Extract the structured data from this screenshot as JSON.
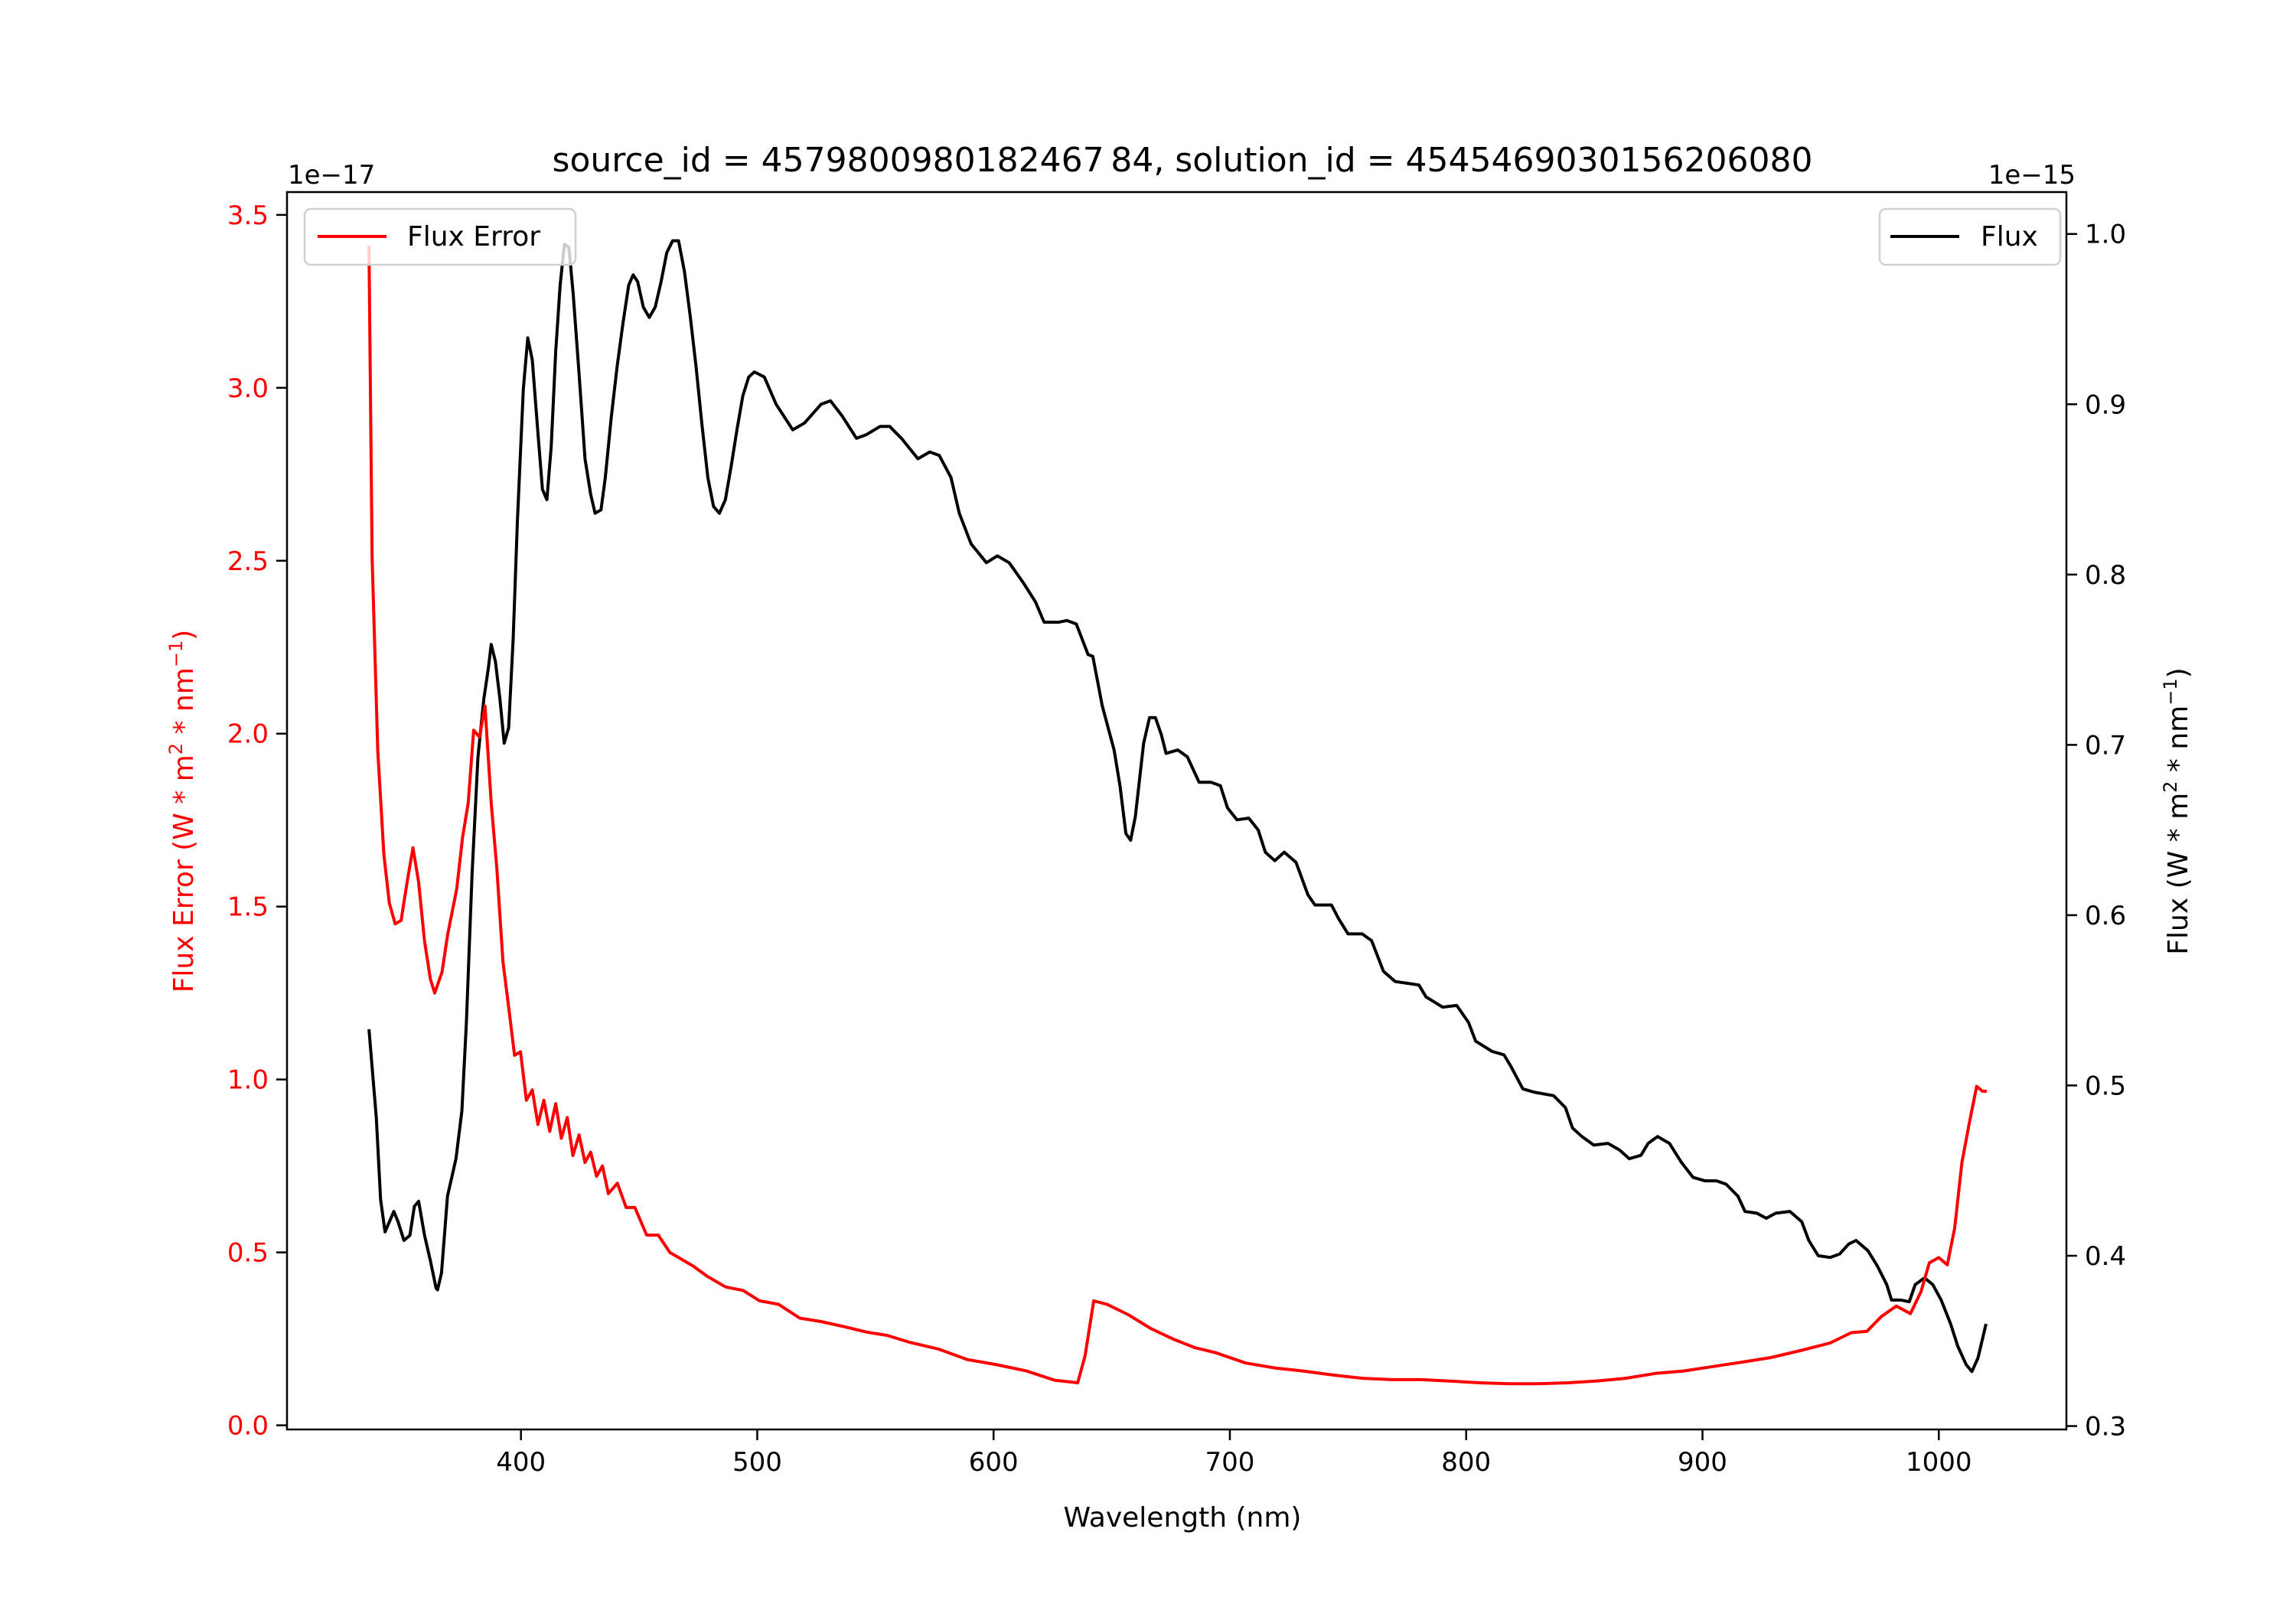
{
  "chart_data": {
    "type": "line",
    "title": "source_id = 4579800980182467 84, solution_id = 4545469030156206080",
    "xlabel": "Wavelength (nm)",
    "ylabel_left": "Flux Error (W * m^2 * nm^-1)",
    "ylabel_right": "Flux (W * m^2 * nm^-1)",
    "left_offset_text": "1e−17",
    "right_offset_text": "1e−15",
    "xlim": [
      301,
      1054
    ],
    "ylim_left": [
      -0.012,
      3.566
    ],
    "ylim_right": [
      0.298,
      1.0246
    ],
    "x_ticks": [
      400,
      500,
      600,
      700,
      800,
      900,
      1000
    ],
    "y_left_ticks": [
      "0.0",
      "0.5",
      "1.0",
      "1.5",
      "2.0",
      "2.5",
      "3.0",
      "3.5"
    ],
    "y_right_ticks": [
      "0.3",
      "0.4",
      "0.5",
      "0.6",
      "0.7",
      "0.8",
      "0.9",
      "1.0"
    ],
    "grid": false,
    "colors": {
      "flux_error": "#ff0000",
      "flux": "#000000"
    },
    "series": [
      {
        "name": "Flux Error",
        "axis": "left",
        "legend": "top-left",
        "x": [
          335.7,
          337,
          339.4,
          342,
          344.3,
          346.8,
          349.3,
          351.8,
          354.3,
          356.7,
          359.2,
          361.7,
          363.5,
          366.6,
          369,
          372.8,
          375.3,
          377.7,
          380,
          382.5,
          384.8,
          387.4,
          389.8,
          392.4,
          394.8,
          397.3,
          399.8,
          402.3,
          404.8,
          407.2,
          409.7,
          412.2,
          414.7,
          417.1,
          419.6,
          422,
          424.6,
          427.1,
          429.5,
          432,
          434.5,
          437,
          440.8,
          444.5,
          448.2,
          453.2,
          458.1,
          463,
          468,
          473,
          479,
          486.6,
          494,
          501,
          509,
          518,
          527,
          537,
          546,
          555,
          564.5,
          577,
          589,
          601.6,
          614,
          626,
          635.6,
          638.7,
          642.4,
          648,
          657,
          666.5,
          675.8,
          685,
          694,
          706.7,
          719,
          731,
          744,
          756,
          768.6,
          781,
          793,
          805.7,
          818,
          830.4,
          843,
          855,
          867.5,
          880,
          892,
          904.6,
          917,
          929,
          942,
          954,
          963,
          969.6,
          975.8,
          982,
          988,
          992.5,
          996,
          1000,
          1003.6,
          1006.7,
          1009.8,
          1012.8,
          1016,
          1018.5,
          1020.3
        ],
        "y": [
          3.41,
          2.51,
          1.95,
          1.65,
          1.51,
          1.45,
          1.46,
          1.57,
          1.67,
          1.57,
          1.4,
          1.29,
          1.25,
          1.31,
          1.42,
          1.55,
          1.7,
          1.8,
          2.01,
          1.99,
          2.08,
          1.8,
          1.61,
          1.34,
          1.21,
          1.07,
          1.08,
          0.94,
          0.97,
          0.87,
          0.94,
          0.85,
          0.93,
          0.83,
          0.89,
          0.78,
          0.84,
          0.76,
          0.79,
          0.72,
          0.75,
          0.67,
          0.7,
          0.63,
          0.63,
          0.55,
          0.55,
          0.5,
          0.48,
          0.46,
          0.43,
          0.4,
          0.39,
          0.36,
          0.35,
          0.31,
          0.3,
          0.285,
          0.27,
          0.26,
          0.24,
          0.22,
          0.19,
          0.175,
          0.157,
          0.13,
          0.123,
          0.2,
          0.36,
          0.35,
          0.32,
          0.28,
          0.25,
          0.225,
          0.21,
          0.18,
          0.166,
          0.157,
          0.145,
          0.136,
          0.132,
          0.132,
          0.128,
          0.123,
          0.12,
          0.12,
          0.123,
          0.128,
          0.136,
          0.15,
          0.157,
          0.17,
          0.183,
          0.196,
          0.217,
          0.238,
          0.268,
          0.272,
          0.315,
          0.345,
          0.323,
          0.387,
          0.47,
          0.485,
          0.464,
          0.57,
          0.76,
          0.87,
          0.98,
          0.966,
          0.966
        ]
      },
      {
        "name": "Flux",
        "axis": "right",
        "legend": "top-right",
        "x": [
          335.7,
          338.8,
          340.6,
          342.5,
          346.2,
          348,
          350.5,
          353,
          354.9,
          356.7,
          359.2,
          361.7,
          364.1,
          364.7,
          366.4,
          368.9,
          372.5,
          375,
          376.9,
          379.3,
          381.8,
          384.3,
          386.2,
          387.4,
          389.2,
          391.1,
          392.9,
          394.8,
          396.7,
          398.5,
          401,
          402.9,
          404.8,
          407.2,
          409.1,
          411,
          412.8,
          414.7,
          416.6,
          418.4,
          420.3,
          422.1,
          424.6,
          427.1,
          429.5,
          431.4,
          433.9,
          435.7,
          438.2,
          440.7,
          443.2,
          445.6,
          447.5,
          449.4,
          451.8,
          454.3,
          456.8,
          459.3,
          461.7,
          464.2,
          466.7,
          469.2,
          471.6,
          474.1,
          476.6,
          479.1,
          481.5,
          484,
          486.5,
          489,
          491.4,
          493.9,
          496.4,
          498.8,
          503,
          508,
          515,
          520,
          527,
          531,
          536,
          542,
          546,
          552,
          556,
          561,
          568,
          573,
          577,
          582,
          585.5,
          590.5,
          597,
          601.6,
          606.6,
          612.7,
          617.7,
          621.4,
          627.6,
          631,
          635,
          640,
          642,
          646,
          651,
          653.5,
          656,
          658,
          660,
          663.5,
          666,
          668.5,
          671,
          673,
          678,
          682,
          687,
          692,
          696,
          699,
          703,
          708,
          712,
          715,
          719,
          723,
          728,
          733,
          736,
          743,
          746,
          750,
          756,
          760,
          765,
          770,
          775,
          780,
          783,
          790,
          796,
          801,
          804,
          811,
          816,
          819,
          824,
          829,
          837,
          842,
          845,
          849,
          854,
          860,
          865,
          869,
          874,
          877,
          881,
          886,
          891,
          896,
          901,
          906,
          910,
          915,
          918,
          923,
          927,
          931,
          937,
          942,
          945,
          949,
          954,
          958,
          962,
          965,
          970,
          974,
          978,
          980,
          984,
          987.5,
          990,
          994,
          997.5,
          1001,
          1005,
          1008,
          1011.6,
          1014,
          1016.6,
          1020
        ],
        "y": [
          0.533,
          0.481,
          0.433,
          0.414,
          0.426,
          0.42,
          0.409,
          0.412,
          0.429,
          0.432,
          0.412,
          0.397,
          0.381,
          0.38,
          0.39,
          0.435,
          0.457,
          0.485,
          0.537,
          0.624,
          0.693,
          0.727,
          0.745,
          0.759,
          0.749,
          0.727,
          0.701,
          0.71,
          0.762,
          0.831,
          0.909,
          0.939,
          0.926,
          0.883,
          0.85,
          0.844,
          0.875,
          0.931,
          0.97,
          0.994,
          0.992,
          0.965,
          0.918,
          0.868,
          0.847,
          0.836,
          0.838,
          0.857,
          0.892,
          0.922,
          0.948,
          0.97,
          0.976,
          0.972,
          0.957,
          0.951,
          0.957,
          0.972,
          0.989,
          0.996,
          0.996,
          0.978,
          0.952,
          0.922,
          0.888,
          0.857,
          0.84,
          0.836,
          0.844,
          0.864,
          0.885,
          0.905,
          0.916,
          0.919,
          0.916,
          0.9,
          0.885,
          0.889,
          0.9,
          0.902,
          0.893,
          0.88,
          0.882,
          0.887,
          0.887,
          0.88,
          0.868,
          0.872,
          0.87,
          0.857,
          0.836,
          0.818,
          0.807,
          0.811,
          0.807,
          0.795,
          0.784,
          0.772,
          0.772,
          0.773,
          0.771,
          0.753,
          0.752,
          0.723,
          0.697,
          0.676,
          0.648,
          0.644,
          0.658,
          0.701,
          0.716,
          0.716,
          0.706,
          0.695,
          0.697,
          0.693,
          0.678,
          0.678,
          0.676,
          0.663,
          0.656,
          0.657,
          0.65,
          0.637,
          0.632,
          0.637,
          0.631,
          0.612,
          0.606,
          0.606,
          0.598,
          0.589,
          0.589,
          0.585,
          0.567,
          0.561,
          0.56,
          0.559,
          0.552,
          0.546,
          0.547,
          0.537,
          0.526,
          0.52,
          0.518,
          0.511,
          0.498,
          0.496,
          0.494,
          0.487,
          0.475,
          0.47,
          0.465,
          0.466,
          0.462,
          0.457,
          0.459,
          0.466,
          0.47,
          0.466,
          0.455,
          0.446,
          0.444,
          0.444,
          0.442,
          0.435,
          0.426,
          0.425,
          0.422,
          0.425,
          0.426,
          0.42,
          0.409,
          0.4,
          0.399,
          0.401,
          0.407,
          0.409,
          0.403,
          0.394,
          0.383,
          0.374,
          0.374,
          0.373,
          0.383,
          0.387,
          0.383,
          0.374,
          0.36,
          0.347,
          0.336,
          0.332,
          0.34,
          0.36
        ]
      }
    ]
  }
}
